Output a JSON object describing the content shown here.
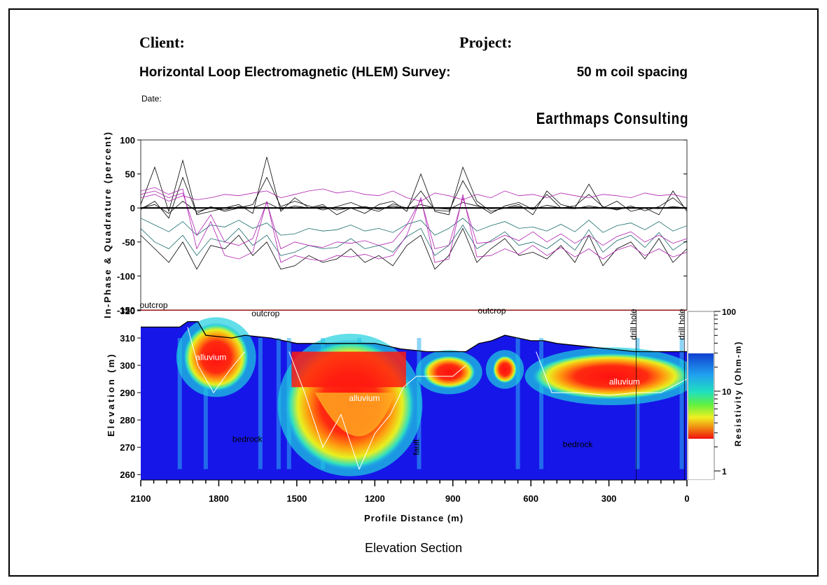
{
  "header": {
    "client_label": "Client:",
    "project_label": "Project:",
    "survey_title": "Horizontal Loop Electromagnetic (HLEM) Survey:",
    "coil_spacing": "50 m coil spacing",
    "date_label": "Date:",
    "company": "Earthmaps Consulting"
  },
  "caption": "Elevation Section",
  "chart_data": [
    {
      "type": "line",
      "title": "",
      "ylabel": "In-Phase &  Quadrature (percent)",
      "xlabel": "",
      "ylim": [
        -150,
        100
      ],
      "xlim": [
        2100,
        0
      ],
      "yticks": [
        100,
        50,
        0,
        -50,
        -100,
        -150
      ],
      "colors": {
        "in_phase": "#000000",
        "quadrature": "#b020b0",
        "alt": "#1a6b6b"
      },
      "series_profiles": [
        {
          "color": "#000000",
          "values": [
            5,
            60,
            -5,
            70,
            -10,
            -5,
            0,
            5,
            -8,
            75,
            -5,
            15,
            0,
            5,
            -10,
            0,
            -8,
            5,
            10,
            -5,
            50,
            -5,
            -10,
            60,
            10,
            -5,
            0,
            5,
            -10,
            25,
            5,
            0,
            35,
            0,
            10,
            -5,
            0,
            -10,
            25,
            -5
          ]
        },
        {
          "color": "#000000",
          "values": [
            -2,
            10,
            -15,
            45,
            -8,
            2,
            -5,
            0,
            5,
            45,
            2,
            10,
            3,
            -3,
            2,
            8,
            0,
            -5,
            6,
            0,
            25,
            -3,
            -5,
            40,
            5,
            -8,
            3,
            8,
            -2,
            20,
            0,
            3,
            20,
            2,
            -3,
            3,
            -4,
            2,
            15,
            -2
          ]
        },
        {
          "color": "#000000",
          "values": [
            0,
            5,
            -8,
            10,
            -5,
            0,
            -3,
            2,
            0,
            8,
            -2,
            3,
            0,
            2,
            -3,
            0,
            2,
            -2,
            3,
            -1,
            5,
            0,
            -2,
            8,
            3,
            -1,
            0,
            2,
            -2,
            4,
            0,
            -1,
            3,
            0,
            -2,
            1,
            0,
            -1,
            2,
            0
          ]
        },
        {
          "color": "#000000",
          "values": [
            -40,
            -60,
            -80,
            -50,
            -90,
            -55,
            -60,
            -40,
            -70,
            -50,
            -90,
            -85,
            -70,
            -80,
            -75,
            -60,
            -80,
            -70,
            -85,
            -55,
            -40,
            -90,
            -70,
            -30,
            -80,
            -60,
            -45,
            -70,
            -65,
            -75,
            -55,
            -80,
            -40,
            -85,
            -60,
            -50,
            -75,
            -45,
            -80,
            -60
          ]
        },
        {
          "color": "#1a6b6b",
          "values": [
            -30,
            -50,
            -60,
            -40,
            -70,
            -45,
            -50,
            -30,
            -55,
            -40,
            -70,
            -65,
            -55,
            -60,
            -58,
            -45,
            -60,
            -55,
            -65,
            -42,
            -30,
            -70,
            -55,
            -25,
            -60,
            -48,
            -35,
            -55,
            -50,
            -60,
            -45,
            -62,
            -32,
            -65,
            -48,
            -40,
            -58,
            -36,
            -62,
            -48
          ]
        },
        {
          "color": "#1a6b6b",
          "values": [
            -15,
            -25,
            -35,
            -20,
            -40,
            -25,
            -28,
            -18,
            -30,
            -22,
            -40,
            -38,
            -30,
            -34,
            -32,
            -25,
            -34,
            -30,
            -36,
            -24,
            -18,
            -40,
            -30,
            -15,
            -34,
            -26,
            -20,
            -30,
            -28,
            -34,
            -24,
            -35,
            -18,
            -36,
            -26,
            -22,
            -32,
            -20,
            -34,
            -26
          ]
        },
        {
          "color": "#b020b0",
          "values": [
            25,
            30,
            20,
            28,
            -60,
            -20,
            -70,
            -75,
            -65,
            10,
            -80,
            -70,
            -75,
            -78,
            -70,
            -72,
            -68,
            -75,
            -70,
            -40,
            15,
            -80,
            -75,
            20,
            -72,
            -70,
            -60,
            -68,
            -55,
            -70,
            -58,
            -72,
            -60,
            -75,
            -62,
            -55,
            -70,
            -60,
            -72,
            -65
          ]
        },
        {
          "color": "#b020b0",
          "values": [
            20,
            25,
            15,
            22,
            -40,
            -10,
            -50,
            -55,
            -45,
            8,
            -60,
            -50,
            -55,
            -58,
            -50,
            -52,
            -48,
            -55,
            -50,
            -25,
            12,
            -60,
            -55,
            15,
            -52,
            -50,
            -40,
            -48,
            -35,
            -50,
            -38,
            -52,
            -40,
            -55,
            -42,
            -35,
            -50,
            -40,
            -52,
            -45
          ]
        },
        {
          "color": "#b020b0",
          "values": [
            15,
            20,
            10,
            18,
            12,
            15,
            20,
            18,
            22,
            25,
            15,
            20,
            25,
            28,
            22,
            25,
            20,
            18,
            25,
            15,
            10,
            22,
            18,
            12,
            20,
            15,
            25,
            18,
            20,
            15,
            22,
            18,
            15,
            20,
            18,
            15,
            22,
            18,
            20,
            15
          ]
        }
      ]
    },
    {
      "type": "heatmap",
      "title": "",
      "xlabel": "Profile Distance (m)",
      "ylabel": "Elevation (m)",
      "xlim": [
        2100,
        0
      ],
      "ylim": [
        258,
        320
      ],
      "xticks": [
        2100,
        1800,
        1500,
        1200,
        900,
        600,
        300,
        0
      ],
      "yticks": [
        320,
        310,
        300,
        290,
        280,
        270,
        260
      ],
      "colorbar": {
        "label": "Resistivity  (Ohm-m)",
        "ticks": [
          100,
          10,
          1
        ],
        "scale": "log"
      },
      "annotations": [
        {
          "text": "outcrop",
          "x": 2050,
          "y": 321
        },
        {
          "text": "outcrop",
          "x": 1620,
          "y": 318
        },
        {
          "text": "outcrop",
          "x": 750,
          "y": 319
        },
        {
          "text": "alluvium",
          "x": 1830,
          "y": 302
        },
        {
          "text": "alluvium",
          "x": 1240,
          "y": 287
        },
        {
          "text": "alluvium",
          "x": 240,
          "y": 293
        },
        {
          "text": "bedrock",
          "x": 1690,
          "y": 272
        },
        {
          "text": "bedrock",
          "x": 420,
          "y": 270
        },
        {
          "text": "drill hole",
          "x": 195,
          "y": 315,
          "rotated": true
        },
        {
          "text": "drill hole",
          "x": 10,
          "y": 315,
          "rotated": true
        },
        {
          "text": "fault",
          "x": 1030,
          "y": 270,
          "rotated": true
        }
      ],
      "topography": {
        "x": [
          2100,
          1950,
          1920,
          1880,
          1850,
          1750,
          1700,
          1600,
          1550,
          1500,
          1400,
          1300,
          1200,
          1100,
          1000,
          900,
          850,
          800,
          750,
          700,
          650,
          600,
          550,
          500,
          400,
          300,
          200,
          100,
          0
        ],
        "elev": [
          314,
          314,
          316,
          316,
          311,
          310,
          311,
          310,
          309,
          308,
          308,
          308,
          308,
          306,
          305,
          305,
          305,
          308,
          309,
          311,
          310,
          309,
          309,
          308,
          307,
          306,
          305,
          305,
          305
        ]
      },
      "zones": [
        {
          "label": "alluvium",
          "x": [
            1920,
            1700
          ],
          "elev": [
            292,
            314
          ],
          "resistivity": 3
        },
        {
          "label": "alluvium",
          "x": [
            1530,
            1060
          ],
          "elev": [
            263,
            308
          ],
          "resistivity": 3
        },
        {
          "label": "alluvium",
          "x": [
            1000,
            830
          ],
          "elev": [
            293,
            302
          ],
          "resistivity": 3
        },
        {
          "label": "alluvium",
          "x": [
            730,
            670
          ],
          "elev": [
            295,
            302
          ],
          "resistivity": 4
        },
        {
          "label": "alluvium",
          "x": [
            580,
            0
          ],
          "elev": [
            289,
            303
          ],
          "resistivity": 4
        }
      ]
    }
  ]
}
